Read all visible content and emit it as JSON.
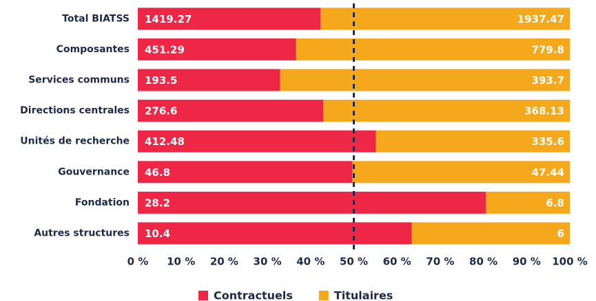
{
  "chart_data": {
    "type": "bar",
    "orientation": "horizontal",
    "stacking": "percent",
    "categories": [
      "Total BIATSS",
      "Composantes",
      "Services communs",
      "Directions centrales",
      "Unités de recherche",
      "Gouvernance",
      "Fondation",
      "Autres structures"
    ],
    "series": [
      {
        "name": "Contractuels",
        "color": "#ee2747",
        "values": [
          1419.27,
          451.29,
          193.5,
          276.6,
          412.48,
          46.8,
          28.2,
          10.4
        ]
      },
      {
        "name": "Titulaires",
        "color": "#f6a81c",
        "values": [
          1937.47,
          779.8,
          393.7,
          368.13,
          335.6,
          47.44,
          6.8,
          6
        ]
      }
    ],
    "xlim": [
      0,
      100
    ],
    "xticks": [
      {
        "value": 0,
        "label": "0 %"
      },
      {
        "value": 10,
        "label": "10 %"
      },
      {
        "value": 20,
        "label": "20 %"
      },
      {
        "value": 30,
        "label": "30 %"
      },
      {
        "value": 40,
        "label": "40 %"
      },
      {
        "value": 50,
        "label": "50 %"
      },
      {
        "value": 60,
        "label": "60 %"
      },
      {
        "value": 70,
        "label": "70 %"
      },
      {
        "value": 80,
        "label": "80 %"
      },
      {
        "value": 90,
        "label": "90 %"
      },
      {
        "value": 100,
        "label": "100 %"
      }
    ],
    "reference_line": 50,
    "reference_color": "#1e2a4a",
    "legend": "bottom",
    "grid": false
  }
}
